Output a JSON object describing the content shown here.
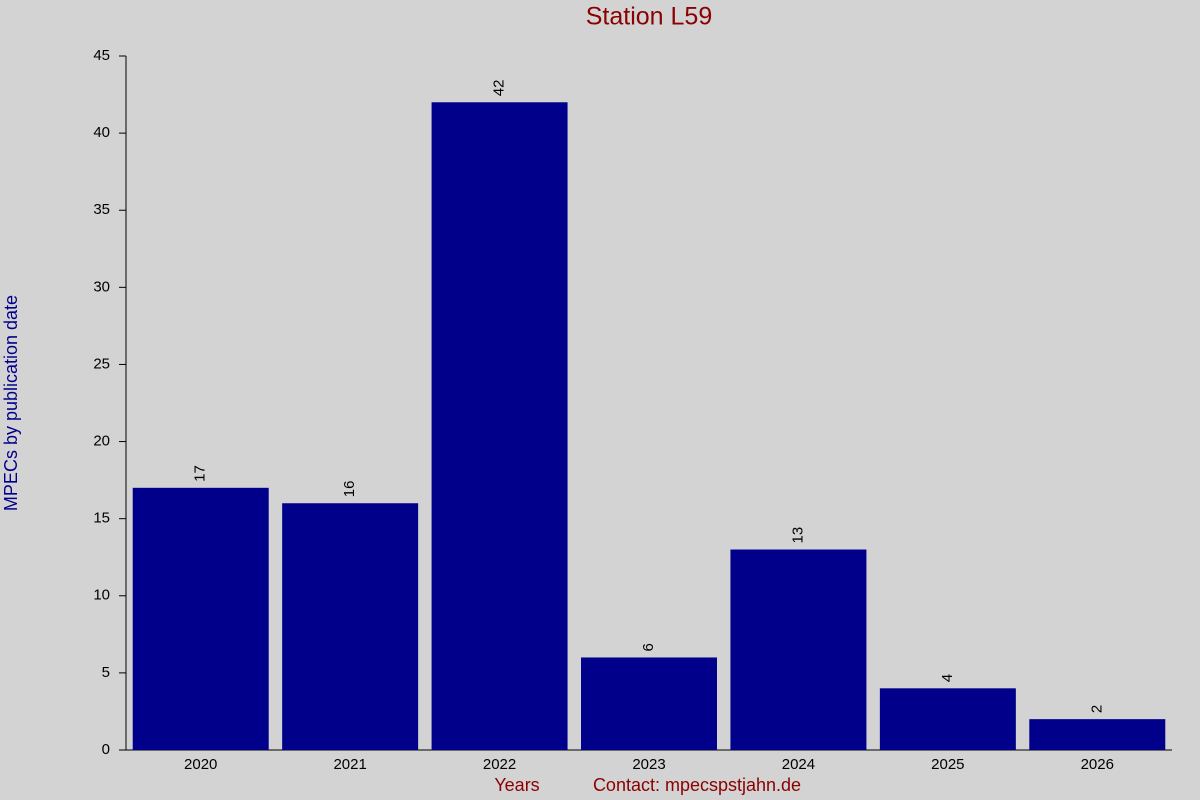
{
  "chart_data": {
    "type": "bar",
    "title": "Station L59",
    "y_label": "MPECs by publication date",
    "x_label": "Years",
    "contact": "Contact: mpecspstjahn.de",
    "categories": [
      "2020",
      "2021",
      "2022",
      "2023",
      "2024",
      "2025",
      "2026"
    ],
    "values": [
      17,
      16,
      42,
      6,
      13,
      4,
      2
    ],
    "color": "#00008b",
    "ylim": [
      0,
      45
    ],
    "yticks": [
      0,
      5,
      10,
      15,
      20,
      25,
      30,
      35,
      40,
      45
    ]
  }
}
